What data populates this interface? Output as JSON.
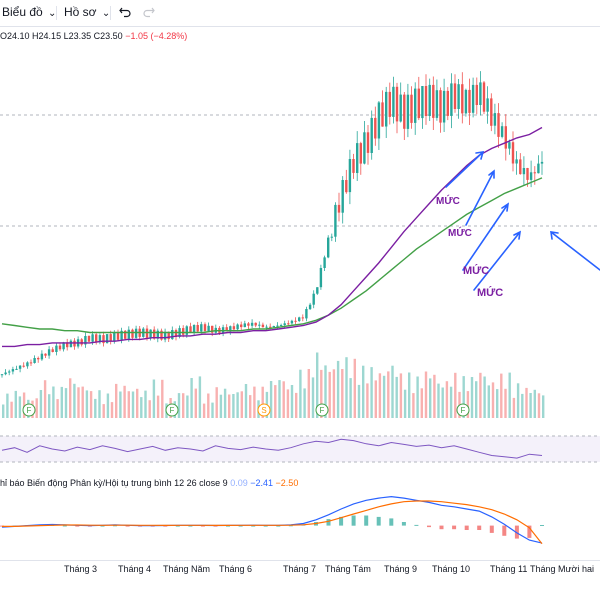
{
  "toolbar": {
    "chart_label": "Biểu đồ",
    "chart_caret": "⌄",
    "profile_label": "Hồ sơ",
    "profile_caret": "⌄",
    "undo_icon": "undo-icon",
    "redo_icon": "redo-icon"
  },
  "ohlc": {
    "open": "O24.10",
    "high": "H24.15",
    "low": "L23.35",
    "close": "C23.50",
    "change": "−1.05 (−4.28%)"
  },
  "annotations": {
    "label": "MỨC",
    "arrow_color": "#2962ff",
    "text_color": "#7b1fa2"
  },
  "macd": {
    "title": "hỉ báo Biến động Phân kỳ/Hội tụ trung bình",
    "params": "12 26 close 9",
    "hist_value": "0.09",
    "macd_value": "−2.41",
    "signal_value": "−2.50"
  },
  "dividend_markers": [
    "F",
    "F",
    "S",
    "F",
    "F"
  ],
  "x_axis": [
    "Tháng 3",
    "Tháng 4",
    "Tháng Năm",
    "Tháng 6",
    "Tháng 7",
    "Tháng Tám",
    "Tháng 9",
    "Tháng 10",
    "Tháng 11",
    "Tháng Mười hai"
  ],
  "colors": {
    "up": "#26a69a",
    "down": "#ef5350",
    "ma_short": "#7b1fa2",
    "ma_long": "#43a047",
    "rsi": "#7e57c2",
    "macd_line": "#2962ff",
    "signal_line": "#ff6d00"
  },
  "chart_data": {
    "type": "candlestick",
    "title": "",
    "last_close": 23.5,
    "ylim": [
      10,
      29
    ],
    "weekly_closes": [
      11.2,
      11.5,
      11.8,
      12.2,
      12.6,
      12.9,
      13.0,
      13.3,
      13.2,
      13.4,
      13.5,
      13.6,
      13.5,
      13.4,
      13.6,
      13.8,
      13.9,
      13.7,
      13.8,
      14.0,
      14.1,
      13.9,
      14.0,
      14.2,
      14.5,
      16.0,
      19.0,
      21.5,
      23.5,
      24.5,
      26.0,
      27.0,
      26.2,
      26.8,
      27.0,
      26.5,
      27.3,
      26.8,
      27.5,
      26.0,
      24.8,
      23.2,
      22.5,
      23.5
    ],
    "ma_short_series": [
      12.8,
      12.8,
      12.9,
      12.9,
      13.0,
      13.0,
      13.0,
      13.0,
      13.1,
      13.1,
      13.2,
      13.2,
      13.3,
      13.3,
      13.4,
      13.4,
      13.5,
      13.5,
      13.6,
      13.6,
      13.7,
      13.7,
      13.8,
      13.9,
      14.0,
      14.2,
      14.6,
      15.2,
      16.0,
      16.8,
      17.6,
      18.5,
      19.4,
      20.2,
      21.0,
      21.8,
      22.5,
      23.2,
      23.8,
      24.2,
      24.5,
      24.8,
      25.0,
      25.4
    ],
    "ma_long_series": [
      14.1,
      14.0,
      13.9,
      13.8,
      13.8,
      13.7,
      13.7,
      13.6,
      13.6,
      13.6,
      13.6,
      13.6,
      13.6,
      13.6,
      13.6,
      13.6,
      13.6,
      13.7,
      13.7,
      13.7,
      13.8,
      13.8,
      13.9,
      14.0,
      14.1,
      14.3,
      14.6,
      15.0,
      15.5,
      16.0,
      16.6,
      17.2,
      17.8,
      18.4,
      18.9,
      19.4,
      19.9,
      20.4,
      20.8,
      21.2,
      21.6,
      21.9,
      22.2,
      22.5
    ],
    "volume_relative": [
      0.35,
      0.4,
      0.3,
      0.55,
      0.45,
      0.6,
      0.5,
      0.4,
      0.35,
      0.5,
      0.45,
      0.4,
      0.55,
      0.3,
      0.4,
      0.6,
      0.35,
      0.45,
      0.4,
      0.5,
      0.45,
      0.55,
      0.6,
      0.5,
      0.7,
      0.95,
      0.8,
      0.9,
      0.85,
      0.75,
      0.7,
      0.8,
      0.65,
      0.6,
      0.7,
      0.55,
      0.65,
      0.6,
      0.7,
      0.55,
      0.65,
      0.5,
      0.45,
      0.4
    ],
    "rsi": [
      48,
      52,
      45,
      55,
      50,
      47,
      53,
      49,
      55,
      51,
      46,
      50,
      54,
      48,
      52,
      50,
      47,
      55,
      51,
      49,
      53,
      50,
      48,
      52,
      58,
      62,
      60,
      65,
      63,
      58,
      55,
      60,
      57,
      54,
      56,
      52,
      55,
      50,
      45,
      40,
      38,
      36,
      42,
      40
    ],
    "macd_line": [
      -0.2,
      -0.1,
      0.0,
      0.1,
      0.15,
      0.1,
      0.05,
      0.0,
      0.05,
      0.1,
      0.05,
      0.0,
      0.0,
      0.02,
      0.05,
      0.05,
      0.03,
      0.02,
      0.03,
      0.05,
      0.06,
      0.05,
      0.05,
      0.1,
      0.3,
      0.8,
      1.5,
      2.3,
      3.0,
      3.5,
      3.8,
      4.0,
      3.8,
      3.5,
      3.2,
      2.8,
      2.6,
      2.3,
      2.0,
      1.2,
      0.2,
      -1.0,
      -2.0,
      -2.41
    ],
    "signal_line": [
      -0.1,
      -0.1,
      -0.05,
      0.0,
      0.05,
      0.08,
      0.08,
      0.06,
      0.05,
      0.06,
      0.06,
      0.05,
      0.04,
      0.03,
      0.04,
      0.04,
      0.04,
      0.03,
      0.03,
      0.04,
      0.05,
      0.05,
      0.05,
      0.06,
      0.12,
      0.3,
      0.6,
      1.1,
      1.6,
      2.1,
      2.6,
      3.0,
      3.3,
      3.4,
      3.4,
      3.3,
      3.1,
      2.9,
      2.6,
      2.2,
      1.6,
      0.8,
      -0.3,
      -2.5
    ],
    "macd_ylim": [
      -3.5,
      4.5
    ],
    "x_ticks": [
      "Tháng 3",
      "Tháng 4",
      "Tháng Năm",
      "Tháng 6",
      "Tháng 7",
      "Tháng Tám",
      "Tháng 9",
      "Tháng 10",
      "Tháng 11",
      "Tháng Mười hai"
    ]
  }
}
